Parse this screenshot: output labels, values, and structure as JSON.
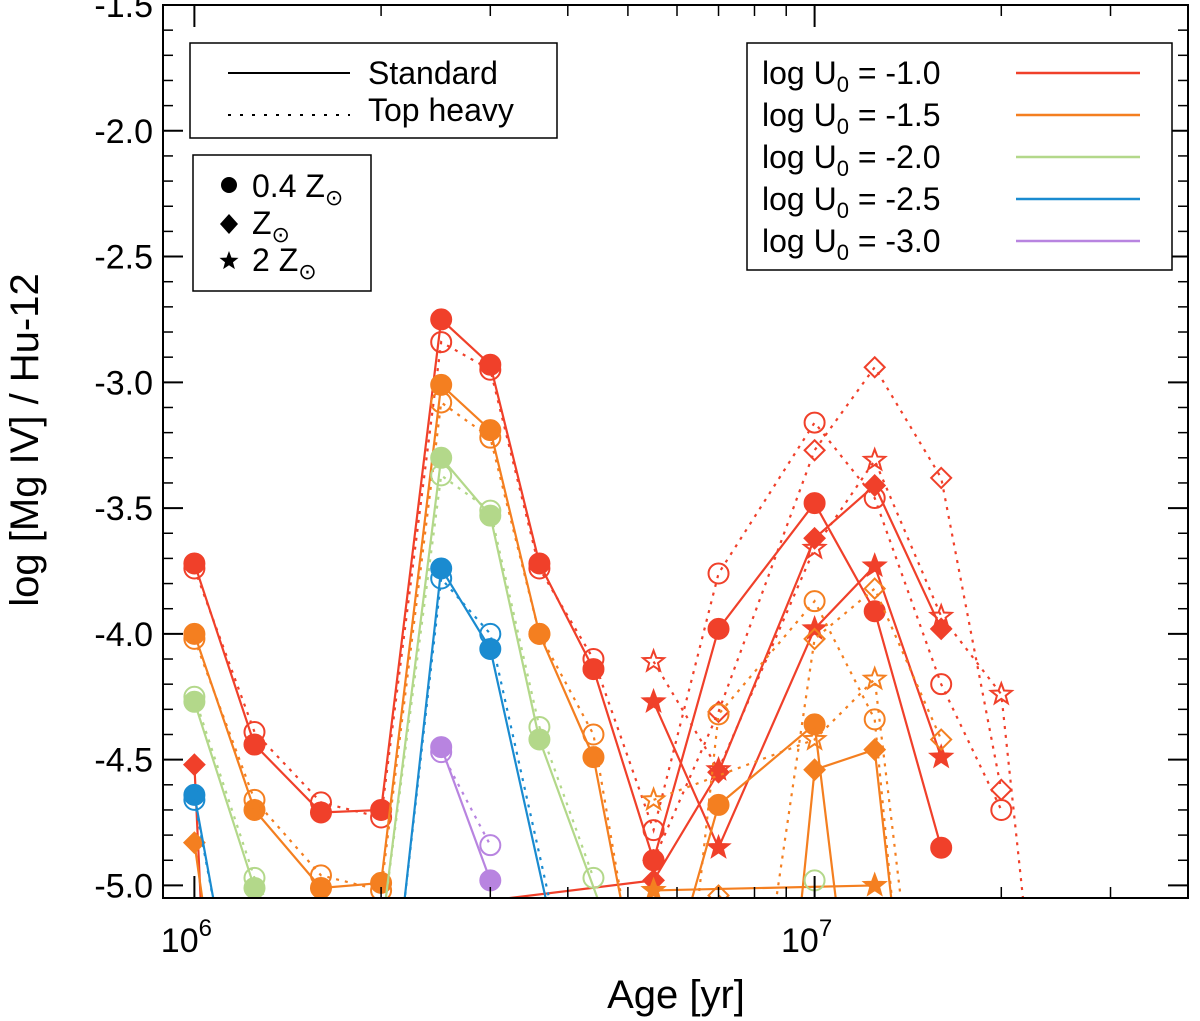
{
  "chart_data": {
    "type": "line",
    "xlabel": "Age [yr]",
    "ylabel": "log [Mg IV] / Hu-12",
    "xscale": "log",
    "xlim": [
      890000,
      40000000
    ],
    "ylim": [
      -5.05,
      -1.5
    ],
    "yticks": [
      -5.0,
      -4.5,
      -4.0,
      -3.5,
      -3.0,
      -2.5,
      -2.0,
      -1.5
    ],
    "yticklabels": [
      "-5.0",
      "-4.5",
      "-4.0",
      "-3.5",
      "-3.0",
      "-2.5",
      "-2.0",
      "-1.5"
    ],
    "xticks": [
      1000000,
      10000000
    ],
    "xtick_base": "10",
    "xtick_exponents": [
      "6",
      "7"
    ],
    "linestyle_legend": [
      {
        "label": "Standard",
        "style": "solid"
      },
      {
        "label": "Top heavy",
        "style": "dotted"
      }
    ],
    "marker_legend": [
      {
        "marker": "circle",
        "label": "0.4 Z",
        "sun": "⊙"
      },
      {
        "marker": "diamond",
        "label": "Z",
        "sun": "⊙"
      },
      {
        "marker": "star",
        "label": "2 Z",
        "sun": "⊙"
      }
    ],
    "color_legend": [
      {
        "label_main": "log U",
        "label_sub": "0",
        "label_value": " = -1.0",
        "color": "#f0402a"
      },
      {
        "label_main": "log U",
        "label_sub": "0",
        "label_value": " = -1.5",
        "color": "#f47f20"
      },
      {
        "label_main": "log U",
        "label_sub": "0",
        "label_value": " = -2.0",
        "color": "#b3d88a"
      },
      {
        "label_main": "log U",
        "label_sub": "0",
        "label_value": " = -2.5",
        "color": "#1a8bd0"
      },
      {
        "label_main": "log U",
        "label_sub": "0",
        "label_value": " = -3.0",
        "color": "#b884e0"
      }
    ],
    "series": [
      {
        "name": "U-1.0 0.4Z standard",
        "logU": -1.0,
        "metallicity": "0.4Z",
        "imf": "standard",
        "color": "#f0402a",
        "marker": "circle",
        "x": [
          1000000,
          1250000,
          1600000,
          2000000,
          2500000,
          3000000,
          3600000,
          4400000,
          5500000,
          7000000,
          10000000,
          12500000,
          16000000
        ],
        "y": [
          -3.72,
          -4.44,
          -4.71,
          -4.7,
          -2.75,
          -2.93,
          -3.72,
          -4.14,
          -4.9,
          -3.98,
          -3.48,
          -3.91,
          -4.85
        ]
      },
      {
        "name": "U-1.0 0.4Z top-heavy",
        "logU": -1.0,
        "metallicity": "0.4Z",
        "imf": "top-heavy",
        "color": "#f0402a",
        "marker": "circle",
        "x": [
          1000000,
          1250000,
          1600000,
          2000000,
          2500000,
          3000000,
          3600000,
          4400000,
          5500000,
          7000000,
          10000000,
          12500000,
          16000000,
          20000000
        ],
        "y": [
          -3.74,
          -4.39,
          -4.67,
          -4.73,
          -2.84,
          -2.95,
          -3.74,
          -4.1,
          -4.78,
          -3.76,
          -3.16,
          -3.46,
          -4.2,
          -4.7
        ]
      },
      {
        "name": "U-1.0 Z standard",
        "logU": -1.0,
        "metallicity": "Z",
        "imf": "standard",
        "color": "#f0402a",
        "marker": "diamond",
        "x": [
          1000000,
          1030000,
          5500000,
          7000000,
          10000000,
          12500000,
          16000000
        ],
        "y": [
          -4.52,
          -5.2,
          -4.98,
          -4.55,
          -3.62,
          -3.41,
          -3.98
        ]
      },
      {
        "name": "U-1.0 Z top-heavy",
        "logU": -1.0,
        "metallicity": "Z",
        "imf": "top-heavy",
        "color": "#f0402a",
        "marker": "diamond",
        "x": [
          5500000,
          7000000,
          10000000,
          12500000,
          16000000,
          20000000
        ],
        "y": [
          -4.9,
          -4.31,
          -3.27,
          -2.94,
          -3.38,
          -4.62
        ]
      },
      {
        "name": "U-1.0 2Z standard",
        "logU": -1.0,
        "metallicity": "2Z",
        "imf": "standard",
        "color": "#f0402a",
        "marker": "star",
        "x": [
          5500000,
          7000000,
          10000000,
          12500000,
          16000000
        ],
        "y": [
          -4.27,
          -4.85,
          -3.98,
          -3.73,
          -4.49
        ]
      },
      {
        "name": "U-1.0 2Z top-heavy",
        "logU": -1.0,
        "metallicity": "2Z",
        "imf": "top-heavy",
        "color": "#f0402a",
        "marker": "star",
        "x": [
          5500000,
          7000000,
          10000000,
          12500000,
          16000000,
          20000000,
          22000000
        ],
        "y": [
          -4.11,
          -4.54,
          -3.66,
          -3.31,
          -3.93,
          -4.24,
          -5.2
        ]
      },
      {
        "name": "U-1.5 0.4Z standard",
        "logU": -1.5,
        "metallicity": "0.4Z",
        "imf": "standard",
        "color": "#f47f20",
        "marker": "circle",
        "x": [
          1000000,
          1250000,
          1600000,
          2000000,
          2500000,
          3000000,
          3600000,
          4400000,
          5000000
        ],
        "y": [
          -4.0,
          -4.7,
          -5.01,
          -4.99,
          -3.01,
          -3.19,
          -4.0,
          -4.49,
          -5.2
        ]
      },
      {
        "name": "U-1.5 0.4Z standard (late)",
        "logU": -1.5,
        "metallicity": "0.4Z",
        "imf": "standard",
        "color": "#f47f20",
        "marker": "circle",
        "x": [
          6100000,
          7000000,
          10000000,
          11000000
        ],
        "y": [
          -5.2,
          -4.68,
          -4.36,
          -5.2
        ]
      },
      {
        "name": "U-1.5 0.4Z top-heavy",
        "logU": -1.5,
        "metallicity": "0.4Z",
        "imf": "top-heavy",
        "color": "#f47f20",
        "marker": "circle",
        "x": [
          1000000,
          1250000,
          1600000,
          2000000,
          2500000,
          3000000,
          3600000,
          4400000,
          5000000
        ],
        "y": [
          -4.02,
          -4.66,
          -4.96,
          -5.02,
          -3.08,
          -3.22,
          -4.0,
          -4.4,
          -5.2
        ]
      },
      {
        "name": "U-1.5 0.4Z top-heavy (late)",
        "logU": -1.5,
        "metallicity": "0.4Z",
        "imf": "top-heavy",
        "color": "#f47f20",
        "marker": "circle",
        "x": [
          6400000,
          7000000,
          10000000,
          12500000,
          13500000
        ],
        "y": [
          -5.2,
          -4.32,
          -3.87,
          -4.34,
          -5.2
        ]
      },
      {
        "name": "U-1.5 Z standard",
        "logU": -1.5,
        "metallicity": "Z",
        "imf": "standard",
        "color": "#f47f20",
        "marker": "diamond",
        "x": [
          1000000,
          1050000
        ],
        "y": [
          -4.83,
          -5.2
        ]
      },
      {
        "name": "U-1.5 Z standard (late)",
        "logU": -1.5,
        "metallicity": "Z",
        "imf": "standard",
        "color": "#f47f20",
        "marker": "diamond",
        "x": [
          9400000,
          10000000,
          12500000,
          13500000
        ],
        "y": [
          -5.2,
          -4.54,
          -4.46,
          -5.2
        ]
      },
      {
        "name": "U-1.5 Z top-heavy",
        "logU": -1.5,
        "metallicity": "Z",
        "imf": "top-heavy",
        "color": "#f47f20",
        "marker": "diamond",
        "x": [
          7000000,
          8500000,
          10000000,
          12500000,
          16000000
        ],
        "y": [
          -5.04,
          -5.2,
          -4.02,
          -3.82,
          -4.42
        ]
      },
      {
        "name": "U-1.5 2Z standard",
        "logU": -1.5,
        "metallicity": "2Z",
        "imf": "standard",
        "color": "#f47f20",
        "marker": "star",
        "x": [
          5500000,
          12500000
        ],
        "y": [
          -5.02,
          -5.0
        ]
      },
      {
        "name": "U-1.5 2Z top-heavy",
        "logU": -1.5,
        "metallicity": "2Z",
        "imf": "top-heavy",
        "color": "#f47f20",
        "marker": "star",
        "x": [
          5500000,
          10000000,
          12500000,
          14000000
        ],
        "y": [
          -4.66,
          -4.42,
          -4.18,
          -5.2
        ]
      },
      {
        "name": "U-2.0 0.4Z standard",
        "logU": -2.0,
        "metallicity": "0.4Z",
        "imf": "standard",
        "color": "#b3d88a",
        "marker": "circle",
        "x": [
          1000000,
          1250000,
          1400000,
          2000000,
          2500000,
          3000000,
          3600000,
          4700000
        ],
        "y": [
          -4.27,
          -5.01,
          -5.2,
          -5.2,
          -3.3,
          -3.53,
          -4.42,
          -5.2
        ]
      },
      {
        "name": "U-2.0 0.4Z top-heavy",
        "logU": -2.0,
        "metallicity": "0.4Z",
        "imf": "top-heavy",
        "color": "#b3d88a",
        "marker": "circle",
        "x": [
          1000000,
          1250000,
          1400000,
          2000000,
          2500000,
          3000000,
          3600000,
          4400000
        ],
        "y": [
          -4.25,
          -4.97,
          -5.2,
          -5.2,
          -3.37,
          -3.51,
          -4.37,
          -4.97
        ]
      },
      {
        "name": "U-2.0 0.4Z top-heavy (late)",
        "logU": -2.0,
        "metallicity": "0.4Z",
        "imf": "top-heavy",
        "color": "#b3d88a",
        "marker": "circle",
        "x": [
          10000000
        ],
        "y": [
          -4.98
        ]
      },
      {
        "name": "U-2.5 0.4Z standard",
        "logU": -2.5,
        "metallicity": "0.4Z",
        "imf": "standard",
        "color": "#1a8bd0",
        "marker": "circle",
        "x": [
          1000000,
          1100000,
          2150000,
          2500000,
          3000000,
          3800000
        ],
        "y": [
          -4.64,
          -5.2,
          -5.2,
          -3.74,
          -4.06,
          -5.2
        ]
      },
      {
        "name": "U-2.5 0.4Z top-heavy",
        "logU": -2.5,
        "metallicity": "0.4Z",
        "imf": "top-heavy",
        "color": "#1a8bd0",
        "marker": "circle",
        "x": [
          1000000,
          1100000,
          2150000,
          2500000,
          3000000,
          3850000
        ],
        "y": [
          -4.66,
          -5.2,
          -5.2,
          -3.78,
          -4.0,
          -5.2
        ]
      },
      {
        "name": "U-3.0 0.4Z standard",
        "logU": -3.0,
        "metallicity": "0.4Z",
        "imf": "standard",
        "color": "#b884e0",
        "marker": "circle",
        "x": [
          2500000,
          3000000
        ],
        "y": [
          -4.45,
          -4.98
        ]
      },
      {
        "name": "U-3.0 0.4Z top-heavy",
        "logU": -3.0,
        "metallicity": "0.4Z",
        "imf": "top-heavy",
        "color": "#b884e0",
        "marker": "circle",
        "x": [
          2500000,
          3000000
        ],
        "y": [
          -4.47,
          -4.84
        ]
      }
    ]
  }
}
